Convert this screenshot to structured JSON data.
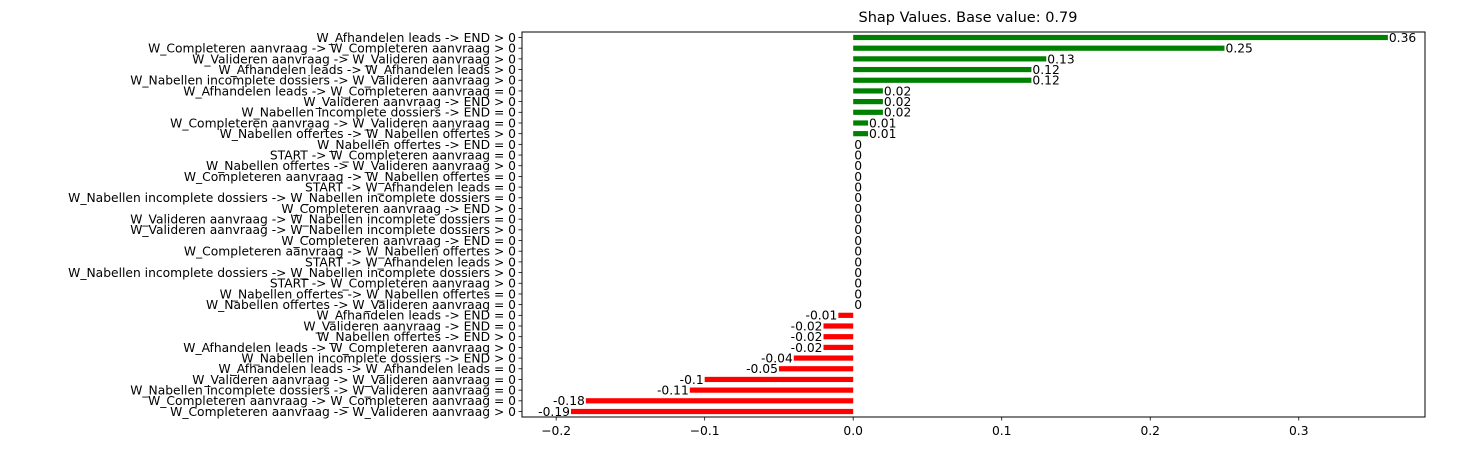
{
  "chart_data": {
    "type": "bar",
    "orientation": "horizontal",
    "title": "Shap Values. Base value: 0.79",
    "xlabel": "",
    "ylabel": "",
    "xlim": [
      -0.223,
      0.385
    ],
    "xticks": [
      -0.2,
      -0.1,
      0.0,
      0.1,
      0.2,
      0.3
    ],
    "xtick_labels": [
      "−0.2",
      "−0.1",
      "0.0",
      "0.1",
      "0.2",
      "0.3"
    ],
    "grid": false,
    "legend": "none",
    "colors": {
      "positive": "#008000",
      "negative": "#ff0000",
      "zero": "#008000"
    },
    "categories": [
      "W_Afhandelen leads -> END > 0",
      "W_Completeren aanvraag -> W_Completeren aanvraag > 0",
      "W_Valideren aanvraag -> W_Valideren aanvraag > 0",
      "W_Afhandelen leads -> W_Afhandelen leads > 0",
      "W_Nabellen incomplete dossiers -> W_Valideren aanvraag > 0",
      "W_Afhandelen leads -> W_Completeren aanvraag = 0",
      "W_Valideren aanvraag -> END > 0",
      "W_Nabellen incomplete dossiers -> END = 0",
      "W_Completeren aanvraag -> W_Valideren aanvraag = 0",
      "W_Nabellen offertes -> W_Nabellen offertes > 0",
      "W_Nabellen offertes -> END = 0",
      "START -> W_Completeren aanvraag = 0",
      "W_Nabellen offertes -> W_Valideren aanvraag > 0",
      "W_Completeren aanvraag -> W_Nabellen offertes = 0",
      "START -> W_Afhandelen leads = 0",
      "W_Nabellen incomplete dossiers -> W_Nabellen incomplete dossiers = 0",
      "W_Completeren aanvraag -> END > 0",
      "W_Valideren aanvraag -> W_Nabellen incomplete dossiers = 0",
      "W_Valideren aanvraag -> W_Nabellen incomplete dossiers > 0",
      "W_Completeren aanvraag -> END = 0",
      "W_Completeren aanvraag -> W_Nabellen offertes > 0",
      "START -> W_Afhandelen leads > 0",
      "W_Nabellen incomplete dossiers -> W_Nabellen incomplete dossiers > 0",
      "START -> W_Completeren aanvraag > 0",
      "W_Nabellen offertes -> W_Nabellen offertes = 0",
      "W_Nabellen offertes -> W_Valideren aanvraag = 0",
      "W_Afhandelen leads -> END = 0",
      "W_Valideren aanvraag -> END = 0",
      "W_Nabellen offertes -> END > 0",
      "W_Afhandelen leads -> W_Completeren aanvraag > 0",
      "W_Nabellen incomplete dossiers -> END > 0",
      "W_Afhandelen leads -> W_Afhandelen leads = 0",
      "W_Valideren aanvraag -> W_Valideren aanvraag = 0",
      "W_Nabellen incomplete dossiers -> W_Valideren aanvraag = 0",
      "W_Completeren aanvraag -> W_Completeren aanvraag = 0",
      "W_Completeren aanvraag -> W_Valideren aanvraag > 0"
    ],
    "values": [
      0.36,
      0.25,
      0.13,
      0.12,
      0.12,
      0.02,
      0.02,
      0.02,
      0.01,
      0.01,
      0,
      0,
      0,
      0,
      0,
      0,
      0,
      0,
      0,
      0,
      0,
      0,
      0,
      0,
      0,
      0,
      -0.01,
      -0.02,
      -0.02,
      -0.02,
      -0.04,
      -0.05,
      -0.1,
      -0.11,
      -0.18,
      -0.19
    ],
    "value_labels": [
      "0.36",
      "0.25",
      "0.13",
      "0.12",
      "0.12",
      "0.02",
      "0.02",
      "0.02",
      "0.01",
      "0.01",
      "0",
      "0",
      "0",
      "0",
      "0",
      "0",
      "0",
      "0",
      "0",
      "0",
      "0",
      "0",
      "0",
      "0",
      "0",
      "0",
      "-0.01",
      "-0.02",
      "-0.02",
      "-0.02",
      "-0.04",
      "-0.05",
      "-0.1",
      "-0.11",
      "-0.18",
      "-0.19"
    ]
  }
}
